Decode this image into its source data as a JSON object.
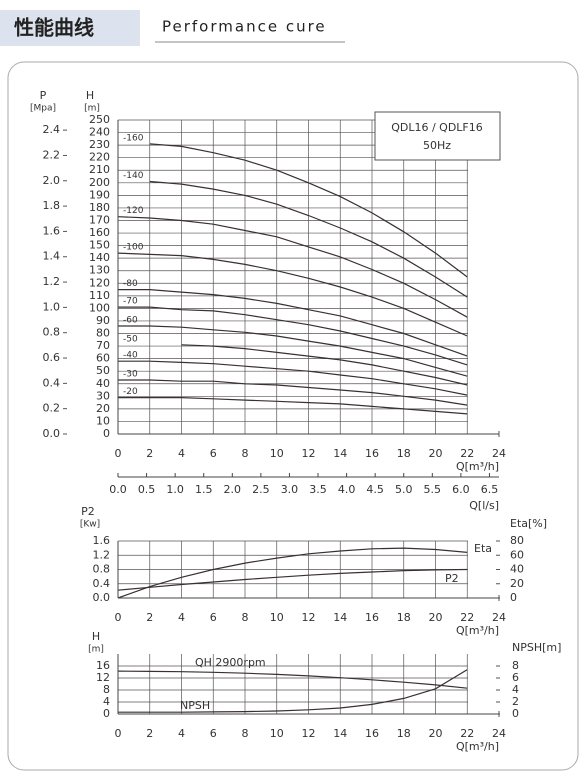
{
  "header": {
    "title": "性能曲线",
    "subtitle": "Performance cure"
  },
  "chart_data": [
    {
      "type": "line",
      "model": "QDL16 / QDLF16",
      "frequency": "50Hz",
      "ylabel": "H",
      "yunit": "[m]",
      "y2label": "P",
      "y2unit": "[Mpa]",
      "xlabel": "Q[m³/h]",
      "x2label": "Q[l/s]",
      "x": [
        0,
        2,
        4,
        6,
        8,
        10,
        12,
        14,
        16,
        18,
        20,
        22
      ],
      "xlim": [
        0,
        24
      ],
      "xticks": [
        0,
        2,
        4,
        6,
        8,
        10,
        12,
        14,
        16,
        18,
        20,
        22,
        24
      ],
      "x2lim": [
        0,
        6.667
      ],
      "x2ticks": [
        {
          "value": 0,
          "label": "0.0"
        },
        0.5,
        {
          "value": 1,
          "label": "1.0"
        },
        1.5,
        {
          "value": 2,
          "label": "2.0"
        },
        2.5,
        {
          "value": 3,
          "label": "3.0"
        },
        3.5,
        {
          "value": 4,
          "label": "4.0"
        },
        4.5,
        {
          "value": 5,
          "label": "5.0"
        },
        5.5,
        {
          "value": 6,
          "label": "6.0"
        },
        6.5
      ],
      "ylim": [
        0,
        250
      ],
      "yticks": [
        0,
        10,
        20,
        30,
        40,
        50,
        60,
        70,
        80,
        90,
        100,
        110,
        120,
        130,
        140,
        150,
        160,
        170,
        180,
        190,
        200,
        210,
        220,
        230,
        240,
        250
      ],
      "y2lim": [
        0,
        2.48
      ],
      "y2ticks": [
        {
          "value": 0,
          "label": "0.0"
        },
        0.2,
        0.4,
        0.6,
        0.8,
        {
          "value": 1,
          "label": "1.0"
        },
        1.2,
        1.4,
        1.6,
        1.8,
        {
          "value": 2,
          "label": "2.0"
        },
        2.2,
        2.4
      ],
      "grid": true,
      "series": [
        {
          "name": "-160",
          "color": "#3a3030",
          "values": [
            null,
            231,
            229,
            224,
            218,
            210,
            200,
            189,
            176,
            161,
            144,
            125
          ]
        },
        {
          "name": "-140",
          "color": "#3a3030",
          "values": [
            null,
            201,
            199,
            195,
            190,
            183,
            174,
            164,
            153,
            140,
            125,
            109
          ]
        },
        {
          "name": "-120",
          "color": "#3a3030",
          "values": [
            173,
            172,
            170,
            167,
            162,
            157,
            149,
            141,
            131,
            120,
            107,
            93
          ]
        },
        {
          "name": "-100",
          "color": "#3a3030",
          "values": [
            144,
            143,
            142,
            139,
            135,
            130,
            124,
            117,
            109,
            100,
            89,
            78
          ]
        },
        {
          "name": "-80",
          "color": "#3a3030",
          "values": [
            115,
            115,
            113,
            111,
            108,
            104,
            99,
            94,
            87,
            80,
            71,
            62
          ]
        },
        {
          "name": "-70",
          "color": "#3a3030",
          "values": [
            101,
            101,
            99,
            98,
            95,
            91,
            87,
            82,
            76,
            70,
            63,
            55
          ]
        },
        {
          "name": "-60",
          "color": "#3a3030",
          "values": [
            86,
            86,
            85,
            83,
            81,
            78,
            74,
            70,
            65,
            60,
            53,
            46
          ]
        },
        {
          "name": "-50",
          "color": "#3a3030",
          "values": [
            null,
            null,
            71,
            70,
            68,
            65,
            62,
            59,
            55,
            50,
            45,
            39
          ]
        },
        {
          "name": "-40",
          "color": "#3a3030",
          "values": [
            58,
            58,
            57,
            56,
            54,
            52,
            50,
            47,
            44,
            40,
            36,
            31
          ]
        },
        {
          "name": "-30",
          "color": "#3a3030",
          "values": [
            43,
            43,
            42,
            42,
            40,
            39,
            37,
            35,
            33,
            30,
            27,
            23
          ]
        },
        {
          "name": "-20",
          "color": "#3a3030",
          "values": [
            29,
            29,
            29,
            28,
            27,
            26,
            25,
            24,
            22,
            20,
            18,
            16
          ]
        }
      ]
    },
    {
      "type": "line",
      "ylabel": "P2",
      "yunit": "[Kw]",
      "y2label": "Eta[%]",
      "xlabel": "Q[m³/h]",
      "x": [
        0,
        2,
        4,
        6,
        8,
        10,
        12,
        14,
        16,
        18,
        20,
        22
      ],
      "xlim": [
        0,
        24
      ],
      "xticks": [
        0,
        2,
        4,
        6,
        8,
        10,
        12,
        14,
        16,
        18,
        20,
        22,
        24
      ],
      "ylim": [
        0,
        1.6
      ],
      "yticks": [
        {
          "value": 0,
          "label": "0.0"
        },
        0.4,
        0.8,
        1.2,
        1.6
      ],
      "y2lim": [
        0,
        80
      ],
      "y2ticks": [
        0,
        20,
        40,
        60,
        80
      ],
      "grid": true,
      "series": [
        {
          "name": "Eta",
          "color": "#3a3030",
          "axis": "y2",
          "values": [
            0,
            16,
            29,
            40,
            49,
            56,
            62,
            66,
            69,
            70,
            68,
            64
          ]
        },
        {
          "name": "P2",
          "color": "#3a3030",
          "values": [
            0.22,
            0.3,
            0.38,
            0.45,
            0.52,
            0.58,
            0.64,
            0.69,
            0.73,
            0.77,
            0.79,
            0.8
          ]
        }
      ]
    },
    {
      "type": "line",
      "ylabel": "H",
      "yunit": "[m]",
      "y2label": "NPSH[m]",
      "xlabel": "Q[m³/h]",
      "x": [
        0,
        2,
        4,
        6,
        8,
        10,
        12,
        14,
        16,
        18,
        20,
        22
      ],
      "xlim": [
        0,
        24
      ],
      "xticks": [
        0,
        2,
        4,
        6,
        8,
        10,
        12,
        14,
        16,
        18,
        20,
        22,
        24
      ],
      "ylim": [
        0,
        20
      ],
      "yticks": [
        0,
        4,
        8,
        12,
        16
      ],
      "y2lim": [
        0,
        10
      ],
      "y2ticks": [
        0,
        2,
        4,
        6,
        8
      ],
      "grid": true,
      "series": [
        {
          "name": "QH 2900rpm",
          "color": "#3a3030",
          "values": [
            14.3,
            14.2,
            14.1,
            13.9,
            13.6,
            13.2,
            12.7,
            12.1,
            11.4,
            10.6,
            9.7,
            8.6
          ]
        },
        {
          "name": "NPSH",
          "color": "#3a3030",
          "axis": "y2",
          "values": [
            0.3,
            0.3,
            0.3,
            0.35,
            0.4,
            0.5,
            0.7,
            1.0,
            1.6,
            2.6,
            4.2,
            7.4
          ]
        }
      ]
    }
  ]
}
